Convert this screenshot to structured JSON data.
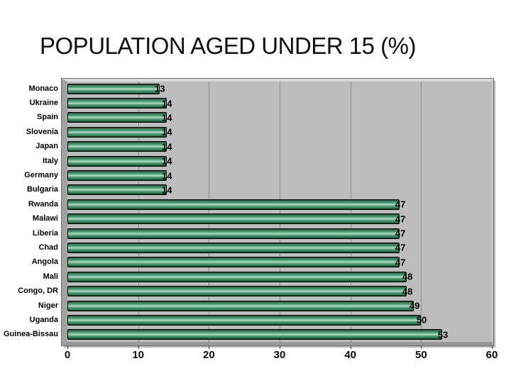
{
  "title": "POPULATION AGED UNDER 15 (%)",
  "chart_data": {
    "type": "bar",
    "orientation": "horizontal",
    "title": "POPULATION AGED UNDER 15 (%)",
    "categories": [
      "Monaco",
      "Ukraine",
      "Spain",
      "Slovenia",
      "Japan",
      "Italy",
      "Germany",
      "Bulgaria",
      "Rwanda",
      "Malawi",
      "Liberia",
      "Chad",
      "Angola",
      "Mali",
      "Congo, DR",
      "Niger",
      "Uganda",
      "Guinea-Bissau"
    ],
    "values": [
      13,
      14,
      14,
      14,
      14,
      14,
      14,
      14,
      47,
      47,
      47,
      47,
      47,
      48,
      48,
      49,
      50,
      53
    ],
    "xlabel": "",
    "ylabel": "",
    "xlim": [
      0,
      60
    ],
    "xticks": [
      0,
      10,
      20,
      30,
      40,
      50,
      60
    ],
    "grid": true,
    "value_labels_shown": true,
    "legend": "none",
    "colors": {
      "bar": "#41a273",
      "bar_highlight": "#c9d2c9",
      "plot_bg": "#bdbdbd",
      "grid": "#8d8d8d",
      "text": "#000000"
    }
  }
}
